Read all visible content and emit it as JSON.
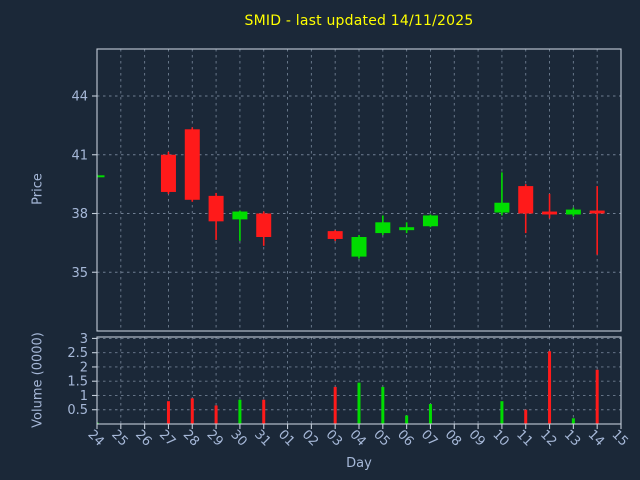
{
  "colors": {
    "background": "#1b2838",
    "title": "#ffff00",
    "axis_text": "#a6b8d8",
    "grid": "#93a3b8",
    "spine": "#c3ccd8",
    "up": "#00dd00",
    "down": "#ff1a1a"
  },
  "chart_data": {
    "type": "candlestick",
    "title": "SMID - last updated 14/11/2025",
    "xlabel": "Day",
    "ylabel_price": "Price",
    "ylabel_volume": "Volume (0000)",
    "grid": true,
    "legend": false,
    "x": [
      "24",
      "25",
      "26",
      "27",
      "28",
      "29",
      "30",
      "31",
      "01",
      "02",
      "03",
      "04",
      "05",
      "06",
      "07",
      "08",
      "09",
      "10",
      "11",
      "12",
      "13",
      "14",
      "15"
    ],
    "price_ticks": [
      35,
      38,
      41,
      44
    ],
    "volume_ticks": [
      0.5,
      1,
      1.5,
      2,
      2.5,
      3
    ],
    "price_range": [
      32.0,
      46.4
    ],
    "volume_range": [
      0,
      3.05
    ],
    "ohlc": [
      {
        "day": "24",
        "open": 39.9,
        "high": 40.0,
        "low": 39.85,
        "close": 39.95,
        "volume": 0.05
      },
      {
        "day": "27",
        "open": 41.0,
        "high": 41.15,
        "low": 39.0,
        "close": 39.1,
        "volume": 0.8
      },
      {
        "day": "28",
        "open": 42.3,
        "high": 42.4,
        "low": 38.6,
        "close": 38.7,
        "volume": 0.9
      },
      {
        "day": "29",
        "open": 38.9,
        "high": 39.05,
        "low": 36.65,
        "close": 37.6,
        "volume": 0.65
      },
      {
        "day": "30",
        "open": 37.7,
        "high": 38.15,
        "low": 36.6,
        "close": 38.1,
        "volume": 0.85
      },
      {
        "day": "31",
        "open": 38.0,
        "high": 38.1,
        "low": 36.35,
        "close": 36.8,
        "volume": 0.85
      },
      {
        "day": "03",
        "open": 37.1,
        "high": 37.15,
        "low": 36.6,
        "close": 36.7,
        "volume": 1.3
      },
      {
        "day": "04",
        "open": 35.8,
        "high": 36.9,
        "low": 35.7,
        "close": 36.8,
        "volume": 1.45
      },
      {
        "day": "05",
        "open": 37.0,
        "high": 37.9,
        "low": 36.9,
        "close": 37.55,
        "volume": 1.3
      },
      {
        "day": "06",
        "open": 37.15,
        "high": 37.55,
        "low": 37.0,
        "close": 37.3,
        "volume": 0.3
      },
      {
        "day": "07",
        "open": 37.35,
        "high": 37.95,
        "low": 37.3,
        "close": 37.9,
        "volume": 0.7
      },
      {
        "day": "10",
        "open": 38.05,
        "high": 40.1,
        "low": 37.9,
        "close": 38.55,
        "volume": 0.8
      },
      {
        "day": "11",
        "open": 39.4,
        "high": 39.5,
        "low": 37.0,
        "close": 38.0,
        "volume": 0.5
      },
      {
        "day": "12",
        "open": 38.1,
        "high": 39.0,
        "low": 37.75,
        "close": 37.95,
        "volume": 2.55
      },
      {
        "day": "13",
        "open": 37.95,
        "high": 38.3,
        "low": 37.85,
        "close": 38.2,
        "volume": 0.2
      },
      {
        "day": "14",
        "open": 38.15,
        "high": 39.4,
        "low": 35.9,
        "close": 38.0,
        "volume": 1.9
      }
    ]
  }
}
